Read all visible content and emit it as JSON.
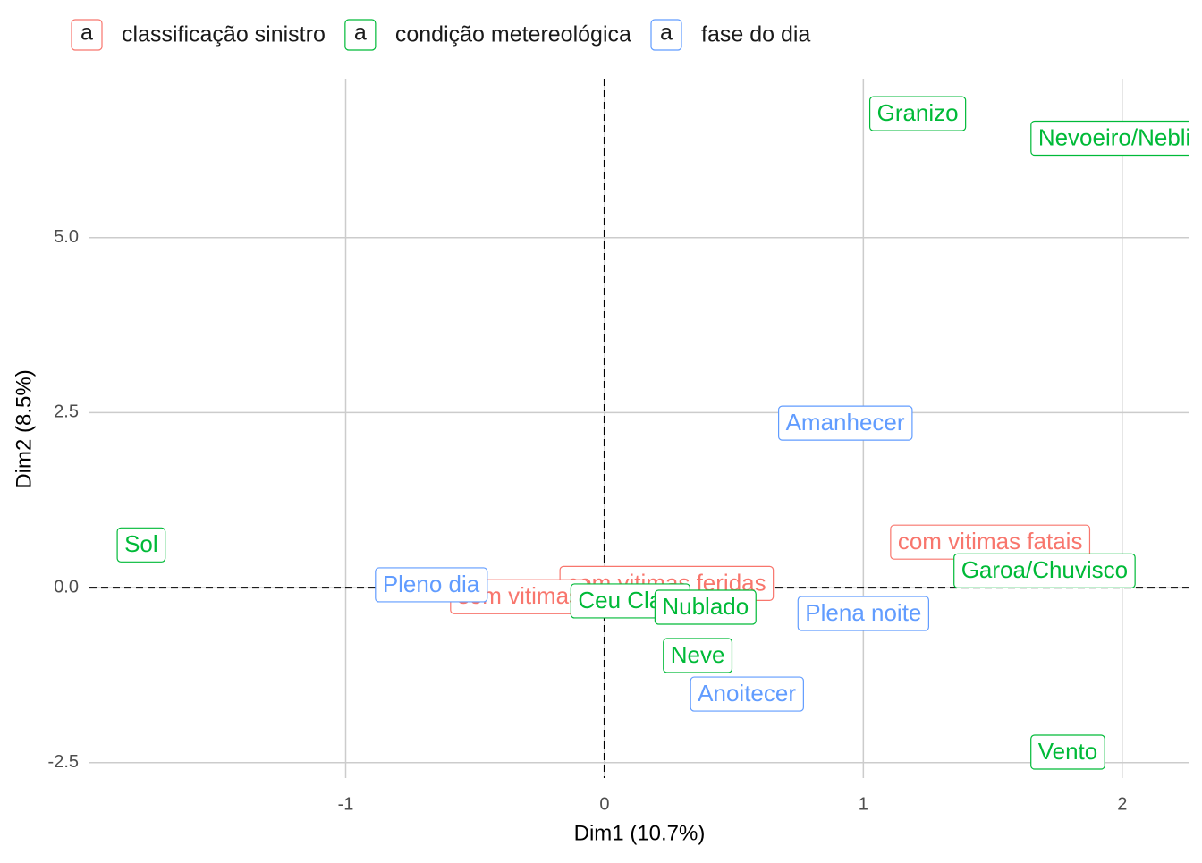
{
  "chart_data": {
    "type": "scatter",
    "xlabel": "Dim1 (10.7%)",
    "ylabel": "Dim2 (8.5%)",
    "legend_key_label": "a",
    "xlim": [
      -1.99,
      2.26
    ],
    "ylim": [
      -2.72,
      7.27
    ],
    "xticks": [
      -1,
      0,
      1,
      2
    ],
    "yticks": [
      -2.5,
      {
        "value": 0,
        "label": "0.0"
      },
      2.5,
      {
        "value": 5,
        "label": "5.0"
      }
    ],
    "grid": true,
    "legend": "top",
    "series": [
      {
        "name": "classificação sinistro",
        "color": "#F8766D",
        "labels": [
          "com vitimas fatais",
          "com vitimas feridas",
          "sem vitimas"
        ],
        "x": [
          1.49,
          0.24,
          -0.33
        ],
        "values": [
          0.65,
          0.06,
          -0.13
        ]
      },
      {
        "name": "condição metereológica",
        "color": "#00BA38",
        "labels": [
          "Granizo",
          "Nevoeiro/Neblina",
          "Sol",
          "Garoa/Chuvisco",
          "Ceu Claro",
          "Nublado",
          "Neve",
          "Vento"
        ],
        "x": [
          1.21,
          2.02,
          -1.79,
          1.7,
          0.1,
          0.39,
          0.36,
          1.79
        ],
        "values": [
          6.77,
          6.42,
          0.61,
          0.24,
          -0.19,
          -0.28,
          -0.97,
          -2.35
        ]
      },
      {
        "name": "fase do dia",
        "color": "#619CFF",
        "labels": [
          "Amanhecer",
          "Pleno dia",
          "Plena noite",
          "Anoitecer"
        ],
        "x": [
          0.93,
          -0.67,
          1.0,
          0.55
        ],
        "values": [
          2.35,
          0.04,
          -0.37,
          -1.52
        ]
      }
    ]
  }
}
